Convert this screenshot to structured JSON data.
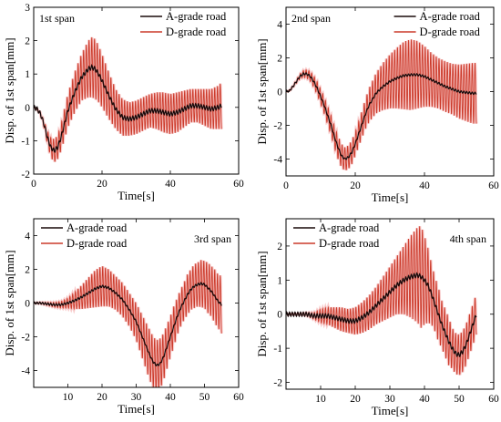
{
  "chart_data": [
    {
      "type": "line",
      "span_label": "1st span",
      "xlabel": "Time[s]",
      "ylabel": "Disp. of 1st span[mm]",
      "xlim": [
        0,
        60
      ],
      "ylim": [
        -2,
        3
      ],
      "xticks": [
        0,
        20,
        40,
        60
      ],
      "yticks": [
        -2,
        -1,
        0,
        1,
        2,
        3
      ],
      "legend": [
        "A-grade road",
        "D-grade road"
      ],
      "legend_position": "top-right",
      "span_label_position": "top-left",
      "series": [
        {
          "name": "A-grade road",
          "color": "#1a0a0a",
          "x": [
            0,
            1,
            2,
            3,
            4,
            5,
            6,
            7,
            8,
            9,
            10,
            12,
            14,
            16,
            17,
            18,
            19,
            20,
            22,
            24,
            26,
            28,
            30,
            32,
            34,
            36,
            38,
            40,
            42,
            44,
            46,
            48,
            50,
            52,
            54,
            55
          ],
          "y": [
            0,
            -0.05,
            -0.2,
            -0.5,
            -0.9,
            -1.2,
            -1.3,
            -1.2,
            -0.9,
            -0.5,
            -0.1,
            0.45,
            0.9,
            1.15,
            1.2,
            1.15,
            1.0,
            0.8,
            0.35,
            -0.05,
            -0.3,
            -0.35,
            -0.3,
            -0.2,
            -0.1,
            -0.1,
            -0.15,
            -0.2,
            -0.15,
            -0.05,
            0.05,
            0.05,
            0.0,
            -0.05,
            0.0,
            0.05
          ]
        },
        {
          "name": "D-grade road",
          "color": "#cc3a2a",
          "x": [
            0,
            1,
            2,
            3,
            4,
            5,
            6,
            7,
            8,
            9,
            10,
            12,
            14,
            16,
            17,
            18,
            19,
            20,
            22,
            24,
            26,
            28,
            30,
            32,
            34,
            36,
            38,
            40,
            42,
            44,
            46,
            48,
            50,
            52,
            54,
            55
          ],
          "y": [
            0,
            -0.05,
            -0.2,
            -0.5,
            -0.9,
            -1.2,
            -1.3,
            -1.2,
            -0.9,
            -0.5,
            -0.1,
            0.45,
            0.9,
            1.15,
            1.2,
            1.15,
            1.0,
            0.8,
            0.35,
            -0.05,
            -0.3,
            -0.35,
            -0.3,
            -0.2,
            -0.1,
            -0.1,
            -0.15,
            -0.2,
            -0.15,
            -0.05,
            0.05,
            0.05,
            0.0,
            -0.05,
            0.0,
            0.05
          ],
          "oscillation_amplitude": [
            0,
            0,
            0.05,
            0.1,
            0.2,
            0.3,
            0.35,
            0.35,
            0.4,
            0.45,
            0.5,
            0.6,
            0.7,
            0.85,
            0.9,
            0.9,
            0.85,
            0.8,
            0.7,
            0.6,
            0.55,
            0.5,
            0.5,
            0.5,
            0.5,
            0.55,
            0.6,
            0.6,
            0.6,
            0.55,
            0.5,
            0.5,
            0.55,
            0.6,
            0.65,
            0.7
          ],
          "oscillation_period": 0.8
        }
      ]
    },
    {
      "type": "line",
      "span_label": "2nd span",
      "xlabel": "Time[s]",
      "ylabel": "Disp. of 1st span[mm]",
      "xlim": [
        0,
        60
      ],
      "ylim": [
        -5,
        5
      ],
      "xticks": [
        0,
        20,
        40,
        60
      ],
      "yticks": [
        -4,
        -2,
        0,
        2,
        4
      ],
      "legend": [
        "A-grade road",
        "D-grade road"
      ],
      "legend_position": "top-right",
      "span_label_position": "top-left",
      "series": [
        {
          "name": "A-grade road",
          "color": "#1a0a0a",
          "x": [
            0,
            1,
            2,
            3,
            4,
            5,
            6,
            7,
            8,
            9,
            10,
            11,
            12,
            13,
            14,
            15,
            16,
            17,
            18,
            19,
            20,
            21,
            22,
            23,
            24,
            26,
            28,
            30,
            32,
            34,
            36,
            38,
            40,
            42,
            44,
            46,
            48,
            50,
            52,
            54,
            55
          ],
          "y": [
            0,
            0.05,
            0.3,
            0.6,
            0.9,
            1.05,
            1.05,
            0.9,
            0.6,
            0.2,
            -0.3,
            -0.8,
            -1.4,
            -2.0,
            -2.7,
            -3.3,
            -3.8,
            -4.0,
            -3.9,
            -3.6,
            -3.1,
            -2.5,
            -1.9,
            -1.3,
            -0.8,
            -0.1,
            0.3,
            0.6,
            0.8,
            0.95,
            1.0,
            1.0,
            0.9,
            0.7,
            0.5,
            0.3,
            0.15,
            0.0,
            -0.05,
            -0.1,
            -0.1
          ]
        },
        {
          "name": "D-grade road",
          "color": "#cc3a2a",
          "x": [
            0,
            1,
            2,
            3,
            4,
            5,
            6,
            7,
            8,
            9,
            10,
            11,
            12,
            13,
            14,
            15,
            16,
            17,
            18,
            19,
            20,
            21,
            22,
            23,
            24,
            26,
            28,
            30,
            32,
            34,
            36,
            38,
            40,
            42,
            44,
            46,
            48,
            50,
            52,
            54,
            55
          ],
          "y": [
            0,
            0.05,
            0.3,
            0.6,
            0.9,
            1.05,
            1.05,
            0.9,
            0.6,
            0.2,
            -0.3,
            -0.8,
            -1.4,
            -2.0,
            -2.7,
            -3.3,
            -3.8,
            -4.0,
            -3.9,
            -3.6,
            -3.1,
            -2.5,
            -1.9,
            -1.3,
            -0.8,
            -0.1,
            0.3,
            0.6,
            0.8,
            0.95,
            1.0,
            1.0,
            0.9,
            0.7,
            0.5,
            0.3,
            0.15,
            0.0,
            -0.05,
            -0.1,
            -0.1
          ],
          "oscillation_amplitude": [
            0,
            0,
            0.05,
            0.1,
            0.15,
            0.2,
            0.25,
            0.3,
            0.35,
            0.4,
            0.45,
            0.5,
            0.55,
            0.6,
            0.65,
            0.7,
            0.7,
            0.7,
            0.7,
            0.7,
            0.7,
            0.75,
            0.8,
            0.9,
            1.0,
            1.2,
            1.4,
            1.6,
            1.8,
            2.0,
            2.1,
            2.0,
            1.8,
            1.6,
            1.5,
            1.5,
            1.5,
            1.6,
            1.7,
            1.8,
            1.8
          ],
          "oscillation_period": 0.8
        }
      ]
    },
    {
      "type": "line",
      "span_label": "3rd span",
      "xlabel": "Time[s]",
      "ylabel": "Disp. of 1st span[mm]",
      "xlim": [
        0,
        60
      ],
      "ylim": [
        -5,
        5
      ],
      "xticks": [
        10,
        20,
        30,
        40,
        50,
        60
      ],
      "yticks": [
        -4,
        -2,
        0,
        2,
        4
      ],
      "legend": [
        "A-grade road",
        "D-grade road"
      ],
      "legend_position": "top-left",
      "span_label_position": "top-right",
      "series": [
        {
          "name": "A-grade road",
          "color": "#1a0a0a",
          "x": [
            0,
            2,
            4,
            6,
            8,
            10,
            12,
            14,
            16,
            18,
            20,
            22,
            24,
            26,
            28,
            30,
            31,
            32,
            33,
            34,
            35,
            36,
            37,
            38,
            39,
            40,
            41,
            42,
            43,
            44,
            45,
            46,
            47,
            48,
            49,
            50,
            51,
            52,
            53,
            54,
            55
          ],
          "y": [
            0,
            0,
            -0.05,
            -0.1,
            -0.1,
            0,
            0.15,
            0.35,
            0.6,
            0.85,
            1.0,
            0.9,
            0.6,
            0.2,
            -0.4,
            -1.1,
            -1.6,
            -2.1,
            -2.6,
            -3.1,
            -3.5,
            -3.7,
            -3.6,
            -3.2,
            -2.6,
            -2.0,
            -1.4,
            -0.8,
            -0.3,
            0.1,
            0.5,
            0.8,
            1.0,
            1.1,
            1.15,
            1.1,
            0.9,
            0.7,
            0.4,
            0.1,
            -0.1
          ]
        },
        {
          "name": "D-grade road",
          "color": "#cc3a2a",
          "x": [
            0,
            2,
            4,
            6,
            8,
            10,
            12,
            14,
            16,
            18,
            20,
            22,
            24,
            26,
            28,
            30,
            31,
            32,
            33,
            34,
            35,
            36,
            37,
            38,
            39,
            40,
            41,
            42,
            43,
            44,
            45,
            46,
            47,
            48,
            49,
            50,
            51,
            52,
            53,
            54,
            55
          ],
          "y": [
            0,
            0,
            -0.05,
            -0.1,
            -0.1,
            0,
            0.15,
            0.35,
            0.6,
            0.85,
            1.0,
            0.9,
            0.6,
            0.2,
            -0.4,
            -1.1,
            -1.6,
            -2.1,
            -2.6,
            -3.1,
            -3.5,
            -3.7,
            -3.6,
            -3.2,
            -2.6,
            -2.0,
            -1.4,
            -0.8,
            -0.3,
            0.1,
            0.5,
            0.8,
            1.0,
            1.1,
            1.15,
            1.1,
            0.9,
            0.7,
            0.4,
            0.1,
            -0.1
          ],
          "oscillation_amplitude": [
            0,
            0.05,
            0.1,
            0.15,
            0.2,
            0.3,
            0.5,
            0.7,
            0.9,
            1.1,
            1.2,
            1.1,
            1.0,
            1.0,
            1.0,
            1.1,
            1.2,
            1.3,
            1.4,
            1.5,
            1.5,
            1.5,
            1.5,
            1.4,
            1.3,
            1.2,
            1.2,
            1.1,
            1.1,
            1.1,
            1.2,
            1.2,
            1.3,
            1.3,
            1.4,
            1.4,
            1.5,
            1.5,
            1.6,
            1.6,
            1.7
          ],
          "oscillation_period": 0.8
        }
      ]
    },
    {
      "type": "line",
      "span_label": "4th span",
      "xlabel": "Time[s]",
      "ylabel": "Disp. of 1st span[mm]",
      "xlim": [
        0,
        60
      ],
      "ylim": [
        -2.2,
        2.8
      ],
      "xticks": [
        10,
        20,
        30,
        40,
        50,
        60
      ],
      "yticks": [
        -2,
        -1,
        0,
        1,
        2
      ],
      "legend": [
        "A-grade road",
        "D-grade road"
      ],
      "legend_position": "top-left",
      "span_label_position": "top-right",
      "series": [
        {
          "name": "A-grade road",
          "color": "#1a0a0a",
          "x": [
            0,
            2,
            4,
            6,
            8,
            10,
            12,
            14,
            16,
            18,
            20,
            22,
            24,
            26,
            28,
            30,
            32,
            34,
            36,
            38,
            39,
            40,
            41,
            42,
            43,
            44,
            45,
            46,
            47,
            48,
            49,
            50,
            51,
            52,
            53,
            54,
            55
          ],
          "y": [
            0,
            0,
            0,
            0,
            -0.05,
            -0.05,
            -0.05,
            -0.1,
            -0.15,
            -0.2,
            -0.2,
            -0.1,
            0.05,
            0.25,
            0.45,
            0.65,
            0.85,
            1.0,
            1.1,
            1.15,
            1.1,
            1.0,
            0.85,
            0.6,
            0.3,
            0.0,
            -0.3,
            -0.55,
            -0.8,
            -1.0,
            -1.15,
            -1.2,
            -1.1,
            -0.9,
            -0.6,
            -0.3,
            0.0
          ]
        },
        {
          "name": "D-grade road",
          "color": "#cc3a2a",
          "x": [
            0,
            2,
            4,
            6,
            8,
            10,
            12,
            14,
            16,
            18,
            20,
            22,
            24,
            26,
            28,
            30,
            32,
            34,
            36,
            38,
            39,
            40,
            41,
            42,
            43,
            44,
            45,
            46,
            47,
            48,
            49,
            50,
            51,
            52,
            53,
            54,
            55
          ],
          "y": [
            0,
            0,
            0,
            0,
            -0.05,
            -0.05,
            -0.05,
            -0.1,
            -0.15,
            -0.2,
            -0.2,
            -0.1,
            0.05,
            0.25,
            0.45,
            0.65,
            0.85,
            1.0,
            1.1,
            1.15,
            1.1,
            1.0,
            0.85,
            0.6,
            0.3,
            0.0,
            -0.3,
            -0.55,
            -0.8,
            -1.0,
            -1.15,
            -1.2,
            -1.1,
            -0.9,
            -0.6,
            -0.3,
            0.0
          ],
          "oscillation_amplitude": [
            0,
            0,
            0.02,
            0.05,
            0.1,
            0.2,
            0.25,
            0.3,
            0.35,
            0.35,
            0.4,
            0.45,
            0.5,
            0.55,
            0.65,
            0.75,
            0.85,
            1.0,
            1.2,
            1.4,
            1.5,
            1.3,
            1.1,
            0.9,
            0.8,
            0.8,
            0.7,
            0.7,
            0.7,
            0.6,
            0.6,
            0.6,
            0.6,
            0.6,
            0.6,
            0.6,
            0.6
          ],
          "oscillation_period": 0.8
        }
      ]
    }
  ]
}
